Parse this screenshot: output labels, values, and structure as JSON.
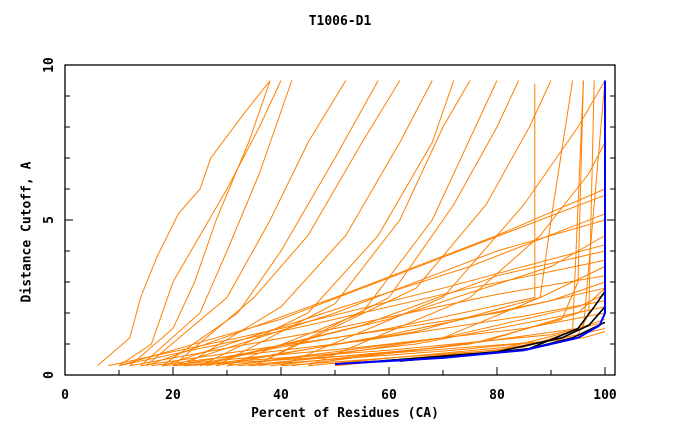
{
  "chart_data": {
    "type": "line",
    "title": "T1006-D1",
    "xlabel": "Percent of Residues (CA)",
    "ylabel": "Distance Cutoff, A",
    "xlim": [
      0,
      100
    ],
    "ylim": [
      0,
      10
    ],
    "x_ticks": [
      "0",
      "20",
      "40",
      "60",
      "80",
      "100"
    ],
    "y_ticks": [
      "0",
      "5",
      "10"
    ],
    "grid": false,
    "colors": {
      "other": "#ff8000",
      "highlight_black": "#000000",
      "highlight_blue": "#0000ff"
    },
    "series_other": [
      [
        [
          6,
          0.3
        ],
        [
          12,
          1.2
        ],
        [
          14,
          2.5
        ],
        [
          17,
          3.8
        ],
        [
          21,
          5.2
        ],
        [
          25,
          6
        ],
        [
          27,
          7
        ],
        [
          33,
          8.4
        ],
        [
          38,
          9.5
        ]
      ],
      [
        [
          10,
          0.3
        ],
        [
          16,
          1
        ],
        [
          20,
          3
        ],
        [
          24,
          4.2
        ],
        [
          30,
          6
        ],
        [
          36,
          8
        ],
        [
          40,
          9.5
        ]
      ],
      [
        [
          12,
          0.3
        ],
        [
          20,
          1.5
        ],
        [
          24,
          3
        ],
        [
          28,
          5
        ],
        [
          34,
          7.5
        ],
        [
          38,
          9.5
        ]
      ],
      [
        [
          14,
          0.3
        ],
        [
          25,
          2
        ],
        [
          30,
          4
        ],
        [
          36,
          6.5
        ],
        [
          42,
          9.5
        ]
      ],
      [
        [
          15,
          0.3
        ],
        [
          30,
          2.5
        ],
        [
          38,
          5
        ],
        [
          45,
          7.5
        ],
        [
          52,
          9.5
        ]
      ],
      [
        [
          18,
          0.3
        ],
        [
          32,
          2
        ],
        [
          40,
          4
        ],
        [
          50,
          7
        ],
        [
          58,
          9.5
        ]
      ],
      [
        [
          20,
          0.3
        ],
        [
          35,
          2.5
        ],
        [
          45,
          4.5
        ],
        [
          55,
          7.5
        ],
        [
          62,
          9.5
        ]
      ],
      [
        [
          22,
          0.3
        ],
        [
          40,
          2.2
        ],
        [
          52,
          4.5
        ],
        [
          62,
          7.5
        ],
        [
          68,
          9.5
        ]
      ],
      [
        [
          25,
          0.3
        ],
        [
          45,
          2
        ],
        [
          58,
          4.5
        ],
        [
          68,
          7.5
        ],
        [
          72,
          9.5
        ]
      ],
      [
        [
          28,
          0.3
        ],
        [
          50,
          2.3
        ],
        [
          62,
          5
        ],
        [
          70,
          8
        ],
        [
          75,
          9.5
        ]
      ],
      [
        [
          30,
          0.3
        ],
        [
          55,
          2
        ],
        [
          68,
          5
        ],
        [
          76,
          8
        ],
        [
          80,
          9.5
        ]
      ],
      [
        [
          35,
          0.3
        ],
        [
          60,
          2.5
        ],
        [
          72,
          5.5
        ],
        [
          80,
          8
        ],
        [
          84,
          9.5
        ]
      ],
      [
        [
          35,
          0.3
        ],
        [
          65,
          2.8
        ],
        [
          78,
          5.5
        ],
        [
          86,
          8
        ],
        [
          90,
          9.5
        ]
      ],
      [
        [
          40,
          0.3
        ],
        [
          70,
          2.5
        ],
        [
          85,
          5.5
        ],
        [
          95,
          8
        ],
        [
          100,
          9.5
        ]
      ],
      [
        [
          45,
          0.3
        ],
        [
          75,
          2.5
        ],
        [
          88,
          4.5
        ],
        [
          97,
          6.5
        ],
        [
          100,
          7.5
        ]
      ],
      [
        [
          8,
          0.3
        ],
        [
          40,
          1.5
        ],
        [
          70,
          2.8
        ],
        [
          100,
          4.2
        ]
      ],
      [
        [
          10,
          0.3
        ],
        [
          45,
          1.6
        ],
        [
          75,
          2.8
        ],
        [
          100,
          3.7
        ]
      ],
      [
        [
          12,
          0.3
        ],
        [
          50,
          1.5
        ],
        [
          80,
          2.6
        ],
        [
          100,
          3.2
        ]
      ],
      [
        [
          14,
          0.3
        ],
        [
          50,
          1.2
        ],
        [
          80,
          2
        ],
        [
          100,
          2.8
        ]
      ],
      [
        [
          16,
          0.3
        ],
        [
          55,
          1.1
        ],
        [
          85,
          1.9
        ],
        [
          100,
          2.4
        ]
      ],
      [
        [
          18,
          0.3
        ],
        [
          55,
          0.9
        ],
        [
          85,
          1.5
        ],
        [
          100,
          2
        ]
      ],
      [
        [
          20,
          0.3
        ],
        [
          60,
          0.8
        ],
        [
          90,
          1.3
        ],
        [
          100,
          1.7
        ]
      ],
      [
        [
          22,
          0.3
        ],
        [
          60,
          0.7
        ],
        [
          90,
          1.1
        ],
        [
          100,
          1.5
        ]
      ],
      [
        [
          10,
          0.3
        ],
        [
          40,
          1.8
        ],
        [
          70,
          3.8
        ],
        [
          100,
          5.8
        ]
      ],
      [
        [
          15,
          0.3
        ],
        [
          50,
          2.5
        ],
        [
          80,
          4.5
        ],
        [
          100,
          6
        ]
      ],
      [
        [
          20,
          0.3
        ],
        [
          50,
          2
        ],
        [
          80,
          4
        ],
        [
          100,
          5
        ]
      ],
      [
        [
          25,
          0.3
        ],
        [
          60,
          1.8
        ],
        [
          90,
          3.5
        ],
        [
          100,
          4.5
        ]
      ],
      [
        [
          28,
          0.3
        ],
        [
          60,
          1.3
        ],
        [
          90,
          2.4
        ],
        [
          100,
          3
        ]
      ],
      [
        [
          30,
          0.3
        ],
        [
          70,
          1.2
        ],
        [
          95,
          2.2
        ],
        [
          100,
          2.6
        ]
      ],
      [
        [
          32,
          0.3
        ],
        [
          70,
          0.9
        ],
        [
          95,
          1.5
        ],
        [
          100,
          1.8
        ]
      ],
      [
        [
          40,
          0.3
        ],
        [
          80,
          0.8
        ],
        [
          95,
          1.3
        ],
        [
          97,
          2
        ],
        [
          98,
          9.5
        ]
      ],
      [
        [
          45,
          0.3
        ],
        [
          82,
          0.9
        ],
        [
          96,
          1.5
        ],
        [
          100,
          9.5
        ]
      ],
      [
        [
          50,
          0.3
        ],
        [
          85,
          0.9
        ],
        [
          94,
          1.4
        ],
        [
          96,
          9.5
        ]
      ],
      [
        [
          38,
          0.3
        ],
        [
          75,
          1
        ],
        [
          92,
          1.8
        ],
        [
          95,
          3
        ],
        [
          96,
          9.5
        ]
      ],
      [
        [
          36,
          0.3
        ],
        [
          70,
          1.2
        ],
        [
          88,
          2.5
        ],
        [
          90,
          5
        ],
        [
          94,
          9.5
        ]
      ],
      [
        [
          42,
          0.3
        ],
        [
          78,
          1.1
        ],
        [
          95,
          2
        ],
        [
          100,
          2.8
        ]
      ],
      [
        [
          26,
          0.3
        ],
        [
          65,
          1.4
        ],
        [
          88,
          2.5
        ],
        [
          100,
          3.5
        ]
      ],
      [
        [
          20,
          0.3
        ],
        [
          60,
          1.5
        ],
        [
          87,
          2.5
        ],
        [
          87,
          9.4
        ]
      ],
      [
        [
          24,
          0.3
        ],
        [
          55,
          1.6
        ],
        [
          80,
          3.2
        ],
        [
          100,
          4
        ]
      ],
      [
        [
          18,
          0.3
        ],
        [
          48,
          2
        ],
        [
          75,
          3.5
        ],
        [
          100,
          5.2
        ]
      ],
      [
        [
          30,
          0.3
        ],
        [
          65,
          1
        ],
        [
          92,
          1.9
        ],
        [
          100,
          2.2
        ]
      ],
      [
        [
          34,
          0.3
        ],
        [
          72,
          0.8
        ],
        [
          96,
          1.2
        ],
        [
          100,
          1.4
        ]
      ]
    ],
    "series_black": [
      [
        [
          50,
          0.35
        ],
        [
          75,
          0.65
        ],
        [
          86,
          0.85
        ],
        [
          95,
          1.5
        ],
        [
          98,
          2.2
        ],
        [
          100,
          2.7
        ]
      ],
      [
        [
          55,
          0.4
        ],
        [
          80,
          0.75
        ],
        [
          92,
          1.2
        ],
        [
          97,
          1.6
        ],
        [
          100,
          2.2
        ]
      ],
      [
        [
          62,
          0.45
        ],
        [
          85,
          0.8
        ],
        [
          94,
          1.2
        ],
        [
          100,
          1.7
        ]
      ]
    ],
    "series_blue": [
      [
        50,
        0.35
      ],
      [
        70,
        0.55
      ],
      [
        85,
        0.8
      ],
      [
        95,
        1.2
      ],
      [
        99,
        1.6
      ],
      [
        100,
        2
      ],
      [
        100,
        9.5
      ]
    ]
  }
}
